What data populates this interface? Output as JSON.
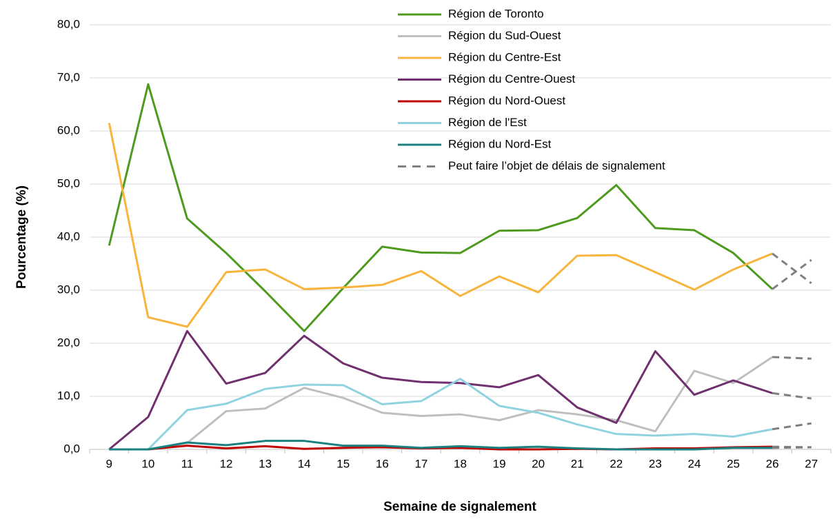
{
  "chart_data": {
    "type": "line",
    "ylabel": "Pourcentage (%)",
    "xlabel": "Semaine de signalement",
    "categories": [
      "9",
      "10",
      "11",
      "12",
      "13",
      "14",
      "15",
      "16",
      "17",
      "18",
      "19",
      "20",
      "21",
      "22",
      "23",
      "24",
      "25",
      "26",
      "27"
    ],
    "series": [
      {
        "name": "Région de Toronto",
        "color": "#4e9a1f",
        "values": [
          38.4,
          68.8,
          43.5,
          37,
          29.8,
          22.3,
          30.4,
          38.2,
          37.1,
          37,
          41.2,
          41.3,
          43.6,
          49.8,
          41.7,
          41.3,
          37,
          30.2,
          35.7
        ]
      },
      {
        "name": "Région du Sud-Ouest",
        "color": "#bfbfbf",
        "values": [
          0,
          0,
          1.2,
          7.2,
          7.7,
          11.6,
          9.7,
          6.9,
          6.3,
          6.6,
          5.5,
          7.4,
          6.6,
          5.5,
          3.4,
          14.8,
          12.5,
          17.4,
          17.1
        ]
      },
      {
        "name": "Région du Centre-Est",
        "color": "#f8b43c",
        "values": [
          61.5,
          24.9,
          23.1,
          33.4,
          33.9,
          30.2,
          30.5,
          31,
          33.6,
          28.9,
          32.6,
          29.6,
          36.5,
          36.6,
          33.4,
          30.1,
          33.9,
          36.9,
          31.3
        ]
      },
      {
        "name": "Région du Centre-Ouest",
        "color": "#70306f",
        "values": [
          0,
          6.1,
          22.3,
          12.4,
          14.4,
          21.4,
          16.2,
          13.5,
          12.7,
          12.5,
          11.7,
          14,
          7.9,
          5,
          18.5,
          10.3,
          13,
          10.6,
          9.6
        ]
      },
      {
        "name": "Région du Nord-Ouest",
        "color": "#c00000",
        "values": [
          0,
          0,
          0.7,
          0.2,
          0.6,
          0.1,
          0.3,
          0.4,
          0.2,
          0.3,
          0,
          0,
          0.1,
          0,
          0.2,
          0.2,
          0.4,
          0.5,
          0.4
        ]
      },
      {
        "name": "Région de l'Est",
        "color": "#8fd3e0",
        "values": [
          0,
          0,
          7.4,
          8.6,
          11.4,
          12.2,
          12.1,
          8.5,
          9.1,
          13.3,
          8.2,
          6.9,
          4.7,
          2.9,
          2.6,
          2.9,
          2.4,
          3.8,
          4.9
        ]
      },
      {
        "name": "Région du Nord-Est",
        "color": "#1a8080",
        "values": [
          0,
          0,
          1.3,
          0.8,
          1.6,
          1.6,
          0.7,
          0.7,
          0.3,
          0.6,
          0.3,
          0.5,
          0.2,
          0,
          0,
          0,
          0.3,
          0.3,
          0.4
        ]
      }
    ],
    "delay": {
      "name": "Peut faire l’objet de délais de signalement",
      "color": "#7f7f7f",
      "from": "26"
    },
    "ylim": [
      0,
      80
    ],
    "yticks": [
      {
        "value": 0,
        "label": "0,0"
      },
      {
        "value": 10,
        "label": "10,0"
      },
      {
        "value": 20,
        "label": "20,0"
      },
      {
        "value": 30,
        "label": "30,0"
      },
      {
        "value": 40,
        "label": "40,0"
      },
      {
        "value": 50,
        "label": "50,0"
      },
      {
        "value": 60,
        "label": "60,0"
      },
      {
        "value": 70,
        "label": "70,0"
      },
      {
        "value": 80,
        "label": "80,0"
      }
    ],
    "grid": true
  }
}
